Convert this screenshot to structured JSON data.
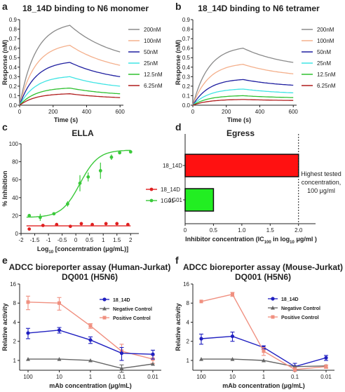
{
  "panels": {
    "a": {
      "label": "a"
    },
    "b": {
      "label": "b"
    },
    "c": {
      "label": "c"
    },
    "d": {
      "label": "d"
    },
    "e": {
      "label": "e"
    },
    "f": {
      "label": "f"
    }
  },
  "chart_data": [
    {
      "id": "a",
      "type": "line",
      "title": "18_14D binding to N6 monomer",
      "xlabel": "Time (s)",
      "ylabel": "Response (nM)",
      "xlim": [
        0,
        620
      ],
      "ylim": [
        0,
        0.9
      ],
      "xticks": [
        0,
        200,
        400,
        600
      ],
      "yticks": [
        0.0,
        0.1,
        0.2,
        0.3,
        0.4,
        0.5,
        0.6,
        0.7,
        0.8,
        0.9
      ],
      "xtick_labels": [
        "0",
        "200",
        "400",
        "600"
      ],
      "ytick_labels": [
        "0.0",
        "0.1",
        "0.2",
        "0.3",
        "0.4",
        "0.5",
        "0.6",
        "0.7",
        "0.8",
        "0.9"
      ],
      "legend_position": "right",
      "series": [
        {
          "name": "200nM",
          "color": "#8a8a8a",
          "peak": 0.84,
          "end": 0.56
        },
        {
          "name": "100nM",
          "color": "#f4b08c",
          "peak": 0.63,
          "end": 0.42
        },
        {
          "name": "50nM",
          "color": "#1f1fa0",
          "peak": 0.45,
          "end": 0.3
        },
        {
          "name": "25nM",
          "color": "#3fe4e4",
          "peak": 0.3,
          "end": 0.2
        },
        {
          "name": "12.5nM",
          "color": "#2fc02f",
          "peak": 0.18,
          "end": 0.12
        },
        {
          "name": "6.25nM",
          "color": "#b01c1c",
          "peak": 0.12,
          "end": 0.08
        }
      ]
    },
    {
      "id": "b",
      "type": "line",
      "title": "18_14D binding to N6 tetramer",
      "xlabel": "Time (s)",
      "ylabel": "Response (nM)",
      "xlim": [
        0,
        620
      ],
      "ylim": [
        0,
        0.9
      ],
      "xticks": [
        0,
        200,
        400,
        600
      ],
      "yticks": [
        0.0,
        0.1,
        0.2,
        0.3,
        0.4,
        0.5,
        0.6,
        0.7,
        0.8,
        0.9
      ],
      "xtick_labels": [
        "0",
        "200",
        "400",
        "600"
      ],
      "ytick_labels": [
        "0.0",
        "0.1",
        "0.2",
        "0.3",
        "0.4",
        "0.5",
        "0.6",
        "0.7",
        "0.8",
        "0.9"
      ],
      "legend_position": "right",
      "series": [
        {
          "name": "200nM",
          "color": "#8a8a8a",
          "peak": 0.6,
          "end": 0.45
        },
        {
          "name": "100nM",
          "color": "#f4b08c",
          "peak": 0.43,
          "end": 0.33
        },
        {
          "name": "50nM",
          "color": "#1f1fa0",
          "peak": 0.27,
          "end": 0.21
        },
        {
          "name": "25nM",
          "color": "#3fe4e4",
          "peak": 0.17,
          "end": 0.13
        },
        {
          "name": "12.5nM",
          "color": "#2fc02f",
          "peak": 0.1,
          "end": 0.08
        },
        {
          "name": "6.25nM",
          "color": "#b01c1c",
          "peak": 0.06,
          "end": 0.05
        }
      ]
    },
    {
      "id": "c",
      "type": "scatter",
      "title": "ELLA",
      "xlabel_main": "Log",
      "xlabel_sub": "10",
      "xlabel_rest": " [concerntration (μg/mL)]",
      "ylabel": "% Inhibition",
      "xlim": [
        -2,
        2.3
      ],
      "ylim": [
        0,
        100
      ],
      "xticks": [
        -2,
        -1.5,
        -1,
        -0.5,
        0,
        0.5,
        1,
        1.5,
        2
      ],
      "xtick_labels": [
        "-2",
        "-1.5",
        "-1",
        "-0.5",
        "0",
        "0.5",
        "1",
        "1.5",
        "2"
      ],
      "yticks": [
        0,
        20,
        40,
        60,
        80,
        100
      ],
      "ytick_labels": [
        "0",
        "20",
        "40",
        "60",
        "80",
        "100"
      ],
      "legend_position": "right",
      "series": [
        {
          "name": "18_14D",
          "color": "#e02020",
          "x": [
            -1.7,
            -1.2,
            -0.7,
            -0.2,
            0.2,
            0.6,
            1.1,
            1.5,
            1.9
          ],
          "y": [
            5,
            9,
            10,
            8,
            11,
            10,
            11,
            11,
            10
          ],
          "fit": "flat",
          "fit_y": 8.5
        },
        {
          "name": "1G01",
          "color": "#3ac93a",
          "x": [
            -1.7,
            -1.3,
            -0.8,
            -0.3,
            0.15,
            0.45,
            0.9,
            1.3,
            1.6,
            2.0
          ],
          "y": [
            20,
            18,
            22,
            33,
            56,
            63,
            70,
            85,
            90,
            91
          ],
          "err": [
            0,
            4,
            0,
            3,
            9,
            5,
            9,
            3,
            0,
            0
          ],
          "fit": "sigmoid",
          "fit_bottom": 18,
          "fit_top": 93,
          "fit_ec50": 0.15,
          "fit_hill": 1.3
        }
      ]
    },
    {
      "id": "d",
      "type": "bar",
      "orientation": "horizontal",
      "title": "Egress",
      "xlabel_main": "Inhibitor concentration (IC",
      "xlabel_sub": "100",
      "xlabel_rest": " in log",
      "xlabel_sub2": "10",
      "xlabel_end": " μg/ml )",
      "xlim": [
        0,
        2.3
      ],
      "xticks": [
        0,
        0.5,
        1.0,
        1.5,
        2.0
      ],
      "xtick_labels": [
        "0",
        "0.5",
        "1.0",
        "1.5",
        "2.0"
      ],
      "categories": [
        "18_14D",
        "1G01"
      ],
      "values": [
        2.0,
        0.5
      ],
      "colors": [
        "#ff1111",
        "#22ee22"
      ],
      "reference_x": 2.0,
      "annotation": [
        "Highest tested",
        "concentration,",
        "100 μg/ml"
      ]
    },
    {
      "id": "e",
      "type": "line",
      "title_lines": [
        "ADCC bioreporter assay (Human-Jurkat)",
        "DQ001 (H5N6)"
      ],
      "xlabel": "mAb concentration (μg/mL)",
      "ylabel": "Relative activity",
      "x": [
        100,
        10,
        1,
        0.1,
        0.01
      ],
      "xticks": [
        100,
        10,
        1,
        0.1,
        0.01
      ],
      "xtick_labels": [
        "100",
        "10",
        "1",
        "0.1",
        "0.01"
      ],
      "yscale": "log2",
      "ylim": [
        0.7,
        16
      ],
      "yticks": [
        1,
        2,
        4,
        8,
        16
      ],
      "ytick_labels": [
        "1",
        "2",
        "4",
        "8",
        "16"
      ],
      "legend_position": "right",
      "series": [
        {
          "name": "Positive Control",
          "color": "#f09080",
          "marker": "square",
          "values": [
            8.3,
            8.0,
            3.5,
            1.4,
            1.05
          ],
          "err": [
            2.0,
            1.8,
            0.3,
            0.4,
            0.15
          ]
        },
        {
          "name": "18_14D",
          "color": "#1f1fc0",
          "marker": "circle",
          "values": [
            2.7,
            3.0,
            2.1,
            1.3,
            1.25
          ],
          "err": [
            0.5,
            0.3,
            0.25,
            0.3,
            0.2
          ]
        },
        {
          "name": "Negative Control",
          "color": "#666666",
          "marker": "triangle",
          "values": [
            1.05,
            1.05,
            1.0,
            0.75,
            0.88
          ],
          "err": [
            0,
            0,
            0,
            0.1,
            0
          ]
        }
      ]
    },
    {
      "id": "f",
      "type": "line",
      "title_lines": [
        "ADCC bioreporter assay (Mouse-Jurkat)",
        "DQ001 (H5N6)"
      ],
      "xlabel": "mAb concentration (μg/mL)",
      "ylabel": "Relative activity",
      "x": [
        100,
        10,
        1,
        0.1,
        0.01
      ],
      "xticks": [
        100,
        10,
        1,
        0.1,
        0.01
      ],
      "xtick_labels": [
        "100",
        "10",
        "1",
        "0.1",
        "0.01"
      ],
      "yscale": "log2",
      "ylim": [
        0.7,
        16
      ],
      "yticks": [
        1,
        2,
        4,
        8,
        16
      ],
      "ytick_labels": [
        "1",
        "2",
        "4",
        "8",
        "16"
      ],
      "legend_position": "top-right",
      "series": [
        {
          "name": "18_14D",
          "color": "#1f1fc0",
          "marker": "circle",
          "values": [
            2.2,
            2.4,
            1.6,
            0.8,
            1.1
          ],
          "err": [
            0.4,
            0.4,
            0.1,
            0.1,
            0.1
          ]
        },
        {
          "name": "Negative Control",
          "color": "#666666",
          "marker": "triangle",
          "values": [
            1.05,
            1.05,
            1.0,
            0.8,
            0.82
          ],
          "err": [
            0,
            0,
            0,
            0,
            0
          ]
        },
        {
          "name": "Positive Control",
          "color": "#f09080",
          "marker": "square",
          "values": [
            8.5,
            11.0,
            1.4,
            0.72,
            0.8
          ],
          "err": [
            0,
            0.8,
            0.2,
            0.05,
            0.05
          ]
        }
      ]
    }
  ]
}
